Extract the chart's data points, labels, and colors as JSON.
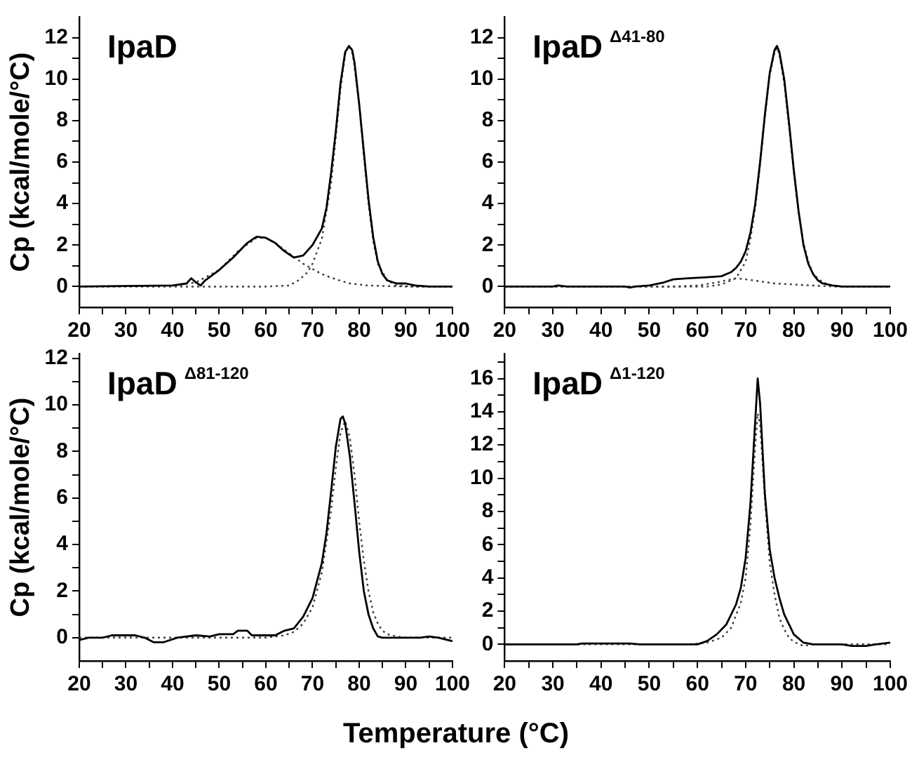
{
  "chart_data": [
    {
      "type": "line",
      "title": "IpaD",
      "ylabel": "Cp (kcal/mole/°C)",
      "xlim": [
        20,
        100
      ],
      "ylim": [
        -1,
        13
      ],
      "marker": "none",
      "grid": false,
      "legend": false,
      "xticks": [
        20,
        {
          "value": 25,
          "label": null
        },
        30,
        {
          "value": 35,
          "label": null
        },
        40,
        {
          "value": 45,
          "label": null
        },
        50,
        {
          "value": 55,
          "label": null
        },
        60,
        {
          "value": 65,
          "label": null
        },
        70,
        {
          "value": 75,
          "label": null
        },
        80,
        {
          "value": 85,
          "label": null
        },
        90,
        {
          "value": 95,
          "label": null
        },
        100
      ],
      "yticks": [
        0,
        {
          "value": 1,
          "label": null
        },
        2,
        {
          "value": 3,
          "label": null
        },
        4,
        {
          "value": 5,
          "label": null
        },
        6,
        {
          "value": 7,
          "label": null
        },
        8,
        {
          "value": 9,
          "label": null
        },
        10,
        {
          "value": 11,
          "label": null
        },
        12
      ],
      "series": [
        {
          "color": "#000000",
          "line_style": "solid",
          "x": [
            20,
            40,
            43,
            44,
            45,
            46,
            47,
            50,
            53,
            56,
            58,
            60,
            62,
            64,
            66,
            68,
            70,
            72,
            73,
            74,
            75,
            76,
            77,
            77.8,
            78.5,
            79,
            80,
            81,
            82,
            83,
            84,
            85,
            86,
            88,
            90,
            92,
            95,
            100
          ],
          "values": [
            0,
            0.05,
            0.15,
            0.4,
            0.2,
            0.05,
            0.3,
            0.8,
            1.4,
            2.1,
            2.4,
            2.35,
            2.1,
            1.7,
            1.4,
            1.5,
            2.0,
            2.8,
            3.8,
            5.5,
            7.5,
            9.8,
            11.3,
            11.6,
            11.4,
            10.8,
            8.8,
            6.5,
            4.2,
            2.4,
            1.2,
            0.6,
            0.3,
            0.15,
            0.15,
            0.05,
            0,
            0
          ]
        },
        {
          "color": "#404040",
          "line_style": "dotted",
          "x": [
            20,
            40,
            45,
            50,
            54,
            58,
            60,
            62,
            65,
            68,
            70,
            72,
            75,
            78,
            82,
            90,
            100
          ],
          "values": [
            0,
            0.05,
            0.2,
            0.8,
            1.7,
            2.35,
            2.35,
            2.1,
            1.6,
            1.1,
            0.85,
            0.6,
            0.35,
            0.15,
            0.05,
            0,
            0
          ]
        },
        {
          "color": "#404040",
          "line_style": "dotted",
          "x": [
            20,
            60,
            65,
            67,
            69,
            70,
            72,
            74,
            75,
            76,
            77,
            77.8,
            78.5,
            79,
            80,
            81,
            82,
            83,
            84,
            86,
            88,
            92,
            100
          ],
          "values": [
            0,
            0,
            0.05,
            0.3,
            0.7,
            1.1,
            2.3,
            5.0,
            7.2,
            9.5,
            11.2,
            11.6,
            11.3,
            10.6,
            8.8,
            6.3,
            4.0,
            2.2,
            1.1,
            0.3,
            0.05,
            0,
            0
          ]
        }
      ]
    },
    {
      "type": "line",
      "title": "IpaD$^{Δ41-80}$",
      "xlim": [
        20,
        100
      ],
      "ylim": [
        -1,
        13
      ],
      "marker": "none",
      "grid": false,
      "legend": false,
      "xticks": [
        20,
        {
          "value": 25,
          "label": null
        },
        30,
        {
          "value": 35,
          "label": null
        },
        40,
        {
          "value": 45,
          "label": null
        },
        50,
        {
          "value": 55,
          "label": null
        },
        60,
        {
          "value": 65,
          "label": null
        },
        70,
        {
          "value": 75,
          "label": null
        },
        80,
        {
          "value": 85,
          "label": null
        },
        90,
        {
          "value": 95,
          "label": null
        },
        100
      ],
      "yticks": [
        0,
        {
          "value": 1,
          "label": null
        },
        2,
        {
          "value": 3,
          "label": null
        },
        4,
        {
          "value": 5,
          "label": null
        },
        6,
        {
          "value": 7,
          "label": null
        },
        8,
        {
          "value": 9,
          "label": null
        },
        10,
        {
          "value": 11,
          "label": null
        },
        12
      ],
      "series": [
        {
          "color": "#000000",
          "line_style": "solid",
          "x": [
            20,
            30,
            31,
            33,
            45,
            46,
            47,
            50,
            53,
            55,
            58,
            62,
            65,
            67,
            68,
            69,
            70,
            71,
            72,
            73,
            74,
            75,
            76,
            76.5,
            77,
            78,
            79,
            80,
            81,
            82,
            83,
            84,
            85,
            86,
            88,
            90,
            100
          ],
          "values": [
            0,
            0,
            0.05,
            0,
            0,
            -0.05,
            0,
            0.05,
            0.2,
            0.35,
            0.4,
            0.45,
            0.5,
            0.7,
            0.9,
            1.2,
            1.7,
            2.6,
            4.0,
            6.0,
            8.3,
            10.3,
            11.4,
            11.6,
            11.3,
            10.0,
            7.9,
            5.6,
            3.6,
            2.0,
            1.1,
            0.6,
            0.3,
            0.15,
            0.05,
            0,
            0
          ]
        },
        {
          "color": "#404040",
          "line_style": "dotted",
          "x": [
            20,
            62,
            65,
            68,
            70,
            71,
            72,
            73,
            74,
            75,
            76,
            76.5,
            77,
            78,
            79,
            80,
            81,
            82,
            83,
            84,
            86,
            88,
            90,
            100
          ],
          "values": [
            0,
            0,
            0.1,
            0.4,
            1.2,
            2.3,
            3.8,
            5.9,
            8.2,
            10.2,
            11.3,
            11.5,
            11.2,
            9.8,
            7.7,
            5.5,
            3.6,
            2.1,
            1.2,
            0.6,
            0.2,
            0.05,
            0,
            0
          ]
        },
        {
          "color": "#404040",
          "line_style": "dotted",
          "x": [
            20,
            55,
            60,
            64,
            68,
            70,
            73,
            76,
            80,
            84,
            88,
            100
          ],
          "values": [
            0,
            0,
            0.05,
            0.2,
            0.4,
            0.35,
            0.25,
            0.15,
            0.1,
            0.05,
            0,
            0
          ]
        }
      ]
    },
    {
      "type": "line",
      "title": "IpaD$^{Δ81-120}$",
      "xlabel": "Temperature (°C)",
      "ylabel": "Cp (kcal/mole/°C)",
      "xlim": [
        20,
        100
      ],
      "ylim": [
        -1,
        12.2
      ],
      "marker": "none",
      "grid": false,
      "legend": false,
      "xticks": [
        20,
        {
          "value": 25,
          "label": null
        },
        30,
        {
          "value": 35,
          "label": null
        },
        40,
        {
          "value": 45,
          "label": null
        },
        50,
        {
          "value": 55,
          "label": null
        },
        60,
        {
          "value": 65,
          "label": null
        },
        70,
        {
          "value": 75,
          "label": null
        },
        80,
        {
          "value": 85,
          "label": null
        },
        90,
        {
          "value": 95,
          "label": null
        },
        100
      ],
      "yticks": [
        0,
        {
          "value": 1,
          "label": null
        },
        2,
        {
          "value": 3,
          "label": null
        },
        4,
        {
          "value": 5,
          "label": null
        },
        6,
        {
          "value": 7,
          "label": null
        },
        8,
        {
          "value": 9,
          "label": null
        },
        10,
        {
          "value": 11,
          "label": null
        },
        12
      ],
      "series": [
        {
          "color": "#000000",
          "line_style": "solid",
          "x": [
            20,
            22,
            25,
            27,
            32,
            34,
            36,
            38,
            41,
            45,
            48,
            50,
            53,
            54,
            56,
            57,
            62,
            64,
            66,
            68,
            70,
            72,
            73,
            74,
            75,
            76,
            76.5,
            77,
            78,
            79,
            80,
            81,
            82,
            83,
            84,
            85,
            90,
            93,
            95,
            97,
            100
          ],
          "values": [
            -0.1,
            0,
            0,
            0.1,
            0.1,
            0,
            -0.2,
            -0.2,
            0,
            0.1,
            0.05,
            0.15,
            0.15,
            0.3,
            0.3,
            0.1,
            0.1,
            0.3,
            0.4,
            0.9,
            1.7,
            3.2,
            4.5,
            6.3,
            8.2,
            9.4,
            9.5,
            9.2,
            7.8,
            5.8,
            3.7,
            2.0,
            1.0,
            0.4,
            0.05,
            0,
            0,
            0,
            0.05,
            0,
            -0.15
          ]
        },
        {
          "color": "#404040",
          "line_style": "dotted",
          "x": [
            20,
            60,
            64,
            66,
            68,
            70,
            72,
            74,
            75,
            76,
            77,
            78,
            79,
            80,
            81,
            82,
            83,
            84,
            85,
            86,
            88,
            90,
            100
          ],
          "values": [
            0,
            0,
            0.1,
            0.25,
            0.6,
            1.3,
            2.8,
            5.5,
            7.3,
            8.8,
            9.3,
            8.6,
            7.0,
            5.0,
            3.3,
            2.0,
            1.1,
            0.6,
            0.3,
            0.15,
            0.05,
            0,
            0
          ]
        }
      ]
    },
    {
      "type": "line",
      "title": "IpaD$^{Δ1-120}$",
      "xlim": [
        20,
        100
      ],
      "ylim": [
        -1,
        17.5
      ],
      "marker": "none",
      "grid": false,
      "legend": false,
      "xticks": [
        20,
        {
          "value": 25,
          "label": null
        },
        30,
        {
          "value": 35,
          "label": null
        },
        40,
        {
          "value": 45,
          "label": null
        },
        50,
        {
          "value": 55,
          "label": null
        },
        60,
        {
          "value": 65,
          "label": null
        },
        70,
        {
          "value": 75,
          "label": null
        },
        80,
        {
          "value": 85,
          "label": null
        },
        90,
        {
          "value": 95,
          "label": null
        },
        100
      ],
      "yticks": [
        0,
        {
          "value": 1,
          "label": null
        },
        2,
        {
          "value": 3,
          "label": null
        },
        4,
        {
          "value": 5,
          "label": null
        },
        6,
        {
          "value": 7,
          "label": null
        },
        8,
        {
          "value": 9,
          "label": null
        },
        10,
        {
          "value": 11,
          "label": null
        },
        12,
        {
          "value": 13,
          "label": null
        },
        14,
        {
          "value": 15,
          "label": null
        },
        16,
        {
          "value": 17,
          "label": null
        }
      ],
      "series": [
        {
          "color": "#000000",
          "line_style": "solid",
          "x": [
            20,
            35,
            36,
            46,
            48,
            60,
            62,
            64,
            66,
            68,
            69,
            70,
            71,
            72,
            72.5,
            73,
            74,
            75,
            76,
            77,
            78,
            80,
            82,
            84,
            90,
            92,
            95,
            97,
            100
          ],
          "values": [
            0,
            0,
            0.05,
            0.05,
            0,
            0,
            0.2,
            0.6,
            1.2,
            2.4,
            3.4,
            5.2,
            8.5,
            13.5,
            16.0,
            14.5,
            9.0,
            5.7,
            4.0,
            2.8,
            1.8,
            0.6,
            0.1,
            0,
            0,
            -0.1,
            -0.1,
            0,
            0.1
          ]
        },
        {
          "color": "#404040",
          "line_style": "dotted",
          "x": [
            20,
            58,
            62,
            65,
            67,
            69,
            70,
            71,
            72,
            72.5,
            73,
            74,
            75,
            76,
            77,
            78,
            79,
            80,
            82,
            84,
            100
          ],
          "values": [
            0,
            0,
            0.1,
            0.4,
            1.0,
            2.5,
            4.0,
            7.2,
            12.0,
            13.9,
            13.2,
            8.7,
            4.9,
            3.0,
            1.6,
            0.9,
            0.4,
            0.15,
            -0.1,
            0,
            0
          ]
        }
      ]
    }
  ]
}
